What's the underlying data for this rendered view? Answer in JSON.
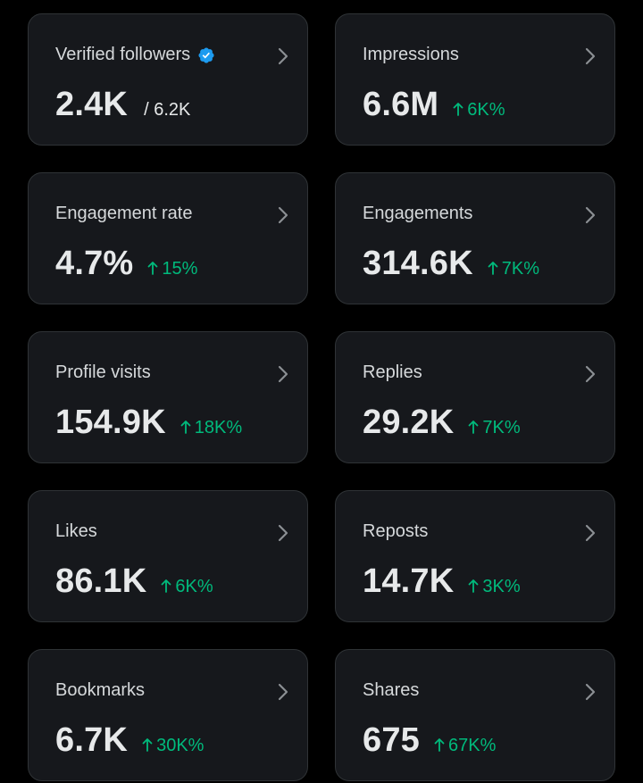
{
  "colors": {
    "background": "#000000",
    "card": "#16181c",
    "border": "#2f3336",
    "positive": "#00ba7c",
    "verified": "#1d9bf0"
  },
  "metrics": [
    {
      "label": "Verified followers",
      "value": "2.4K",
      "sub": "/ 6.2K",
      "verified": true
    },
    {
      "label": "Impressions",
      "value": "6.6M",
      "delta": "6K%"
    },
    {
      "label": "Engagement rate",
      "value": "4.7%",
      "delta": "15%"
    },
    {
      "label": "Engagements",
      "value": "314.6K",
      "delta": "7K%"
    },
    {
      "label": "Profile visits",
      "value": "154.9K",
      "delta": "18K%"
    },
    {
      "label": "Replies",
      "value": "29.2K",
      "delta": "7K%"
    },
    {
      "label": "Likes",
      "value": "86.1K",
      "delta": "6K%"
    },
    {
      "label": "Reposts",
      "value": "14.7K",
      "delta": "3K%"
    },
    {
      "label": "Bookmarks",
      "value": "6.7K",
      "delta": "30K%"
    },
    {
      "label": "Shares",
      "value": "675",
      "delta": "67K%"
    }
  ]
}
